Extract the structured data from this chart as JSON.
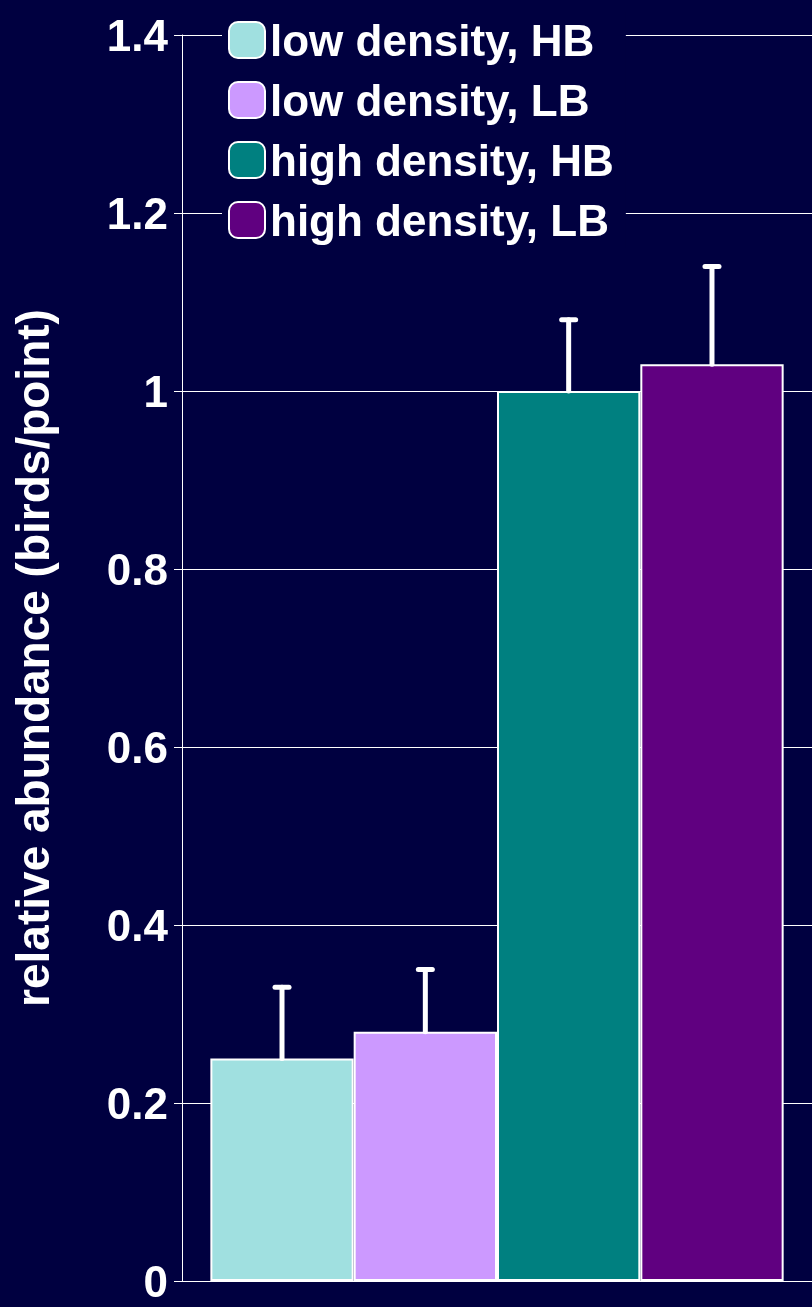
{
  "chart_data": {
    "type": "bar",
    "ylabel": "relative abundance (birds/point)",
    "categories": [
      null
    ],
    "series": [
      {
        "name": "low density, HB",
        "color": "#a0e0e0",
        "values": [
          0.25
        ],
        "errors": [
          [
            0.25,
            0.33
          ]
        ]
      },
      {
        "name": "low density, LB",
        "color": "#cc99ff",
        "values": [
          0.28
        ],
        "errors": [
          [
            0.28,
            0.35
          ]
        ]
      },
      {
        "name": "high density, HB",
        "color": "#008080",
        "values": [
          1.0
        ],
        "errors": [
          [
            1.0,
            1.08
          ]
        ]
      },
      {
        "name": "high density, LB",
        "color": "#600080",
        "values": [
          1.03
        ],
        "errors": [
          [
            1.03,
            1.14
          ]
        ]
      }
    ],
    "ylim": [
      0,
      1.4
    ],
    "yticks": [
      0,
      0.2,
      0.4,
      0.6,
      0.8,
      1,
      1.2,
      1.4
    ],
    "grid": "y",
    "legend": "top left"
  }
}
